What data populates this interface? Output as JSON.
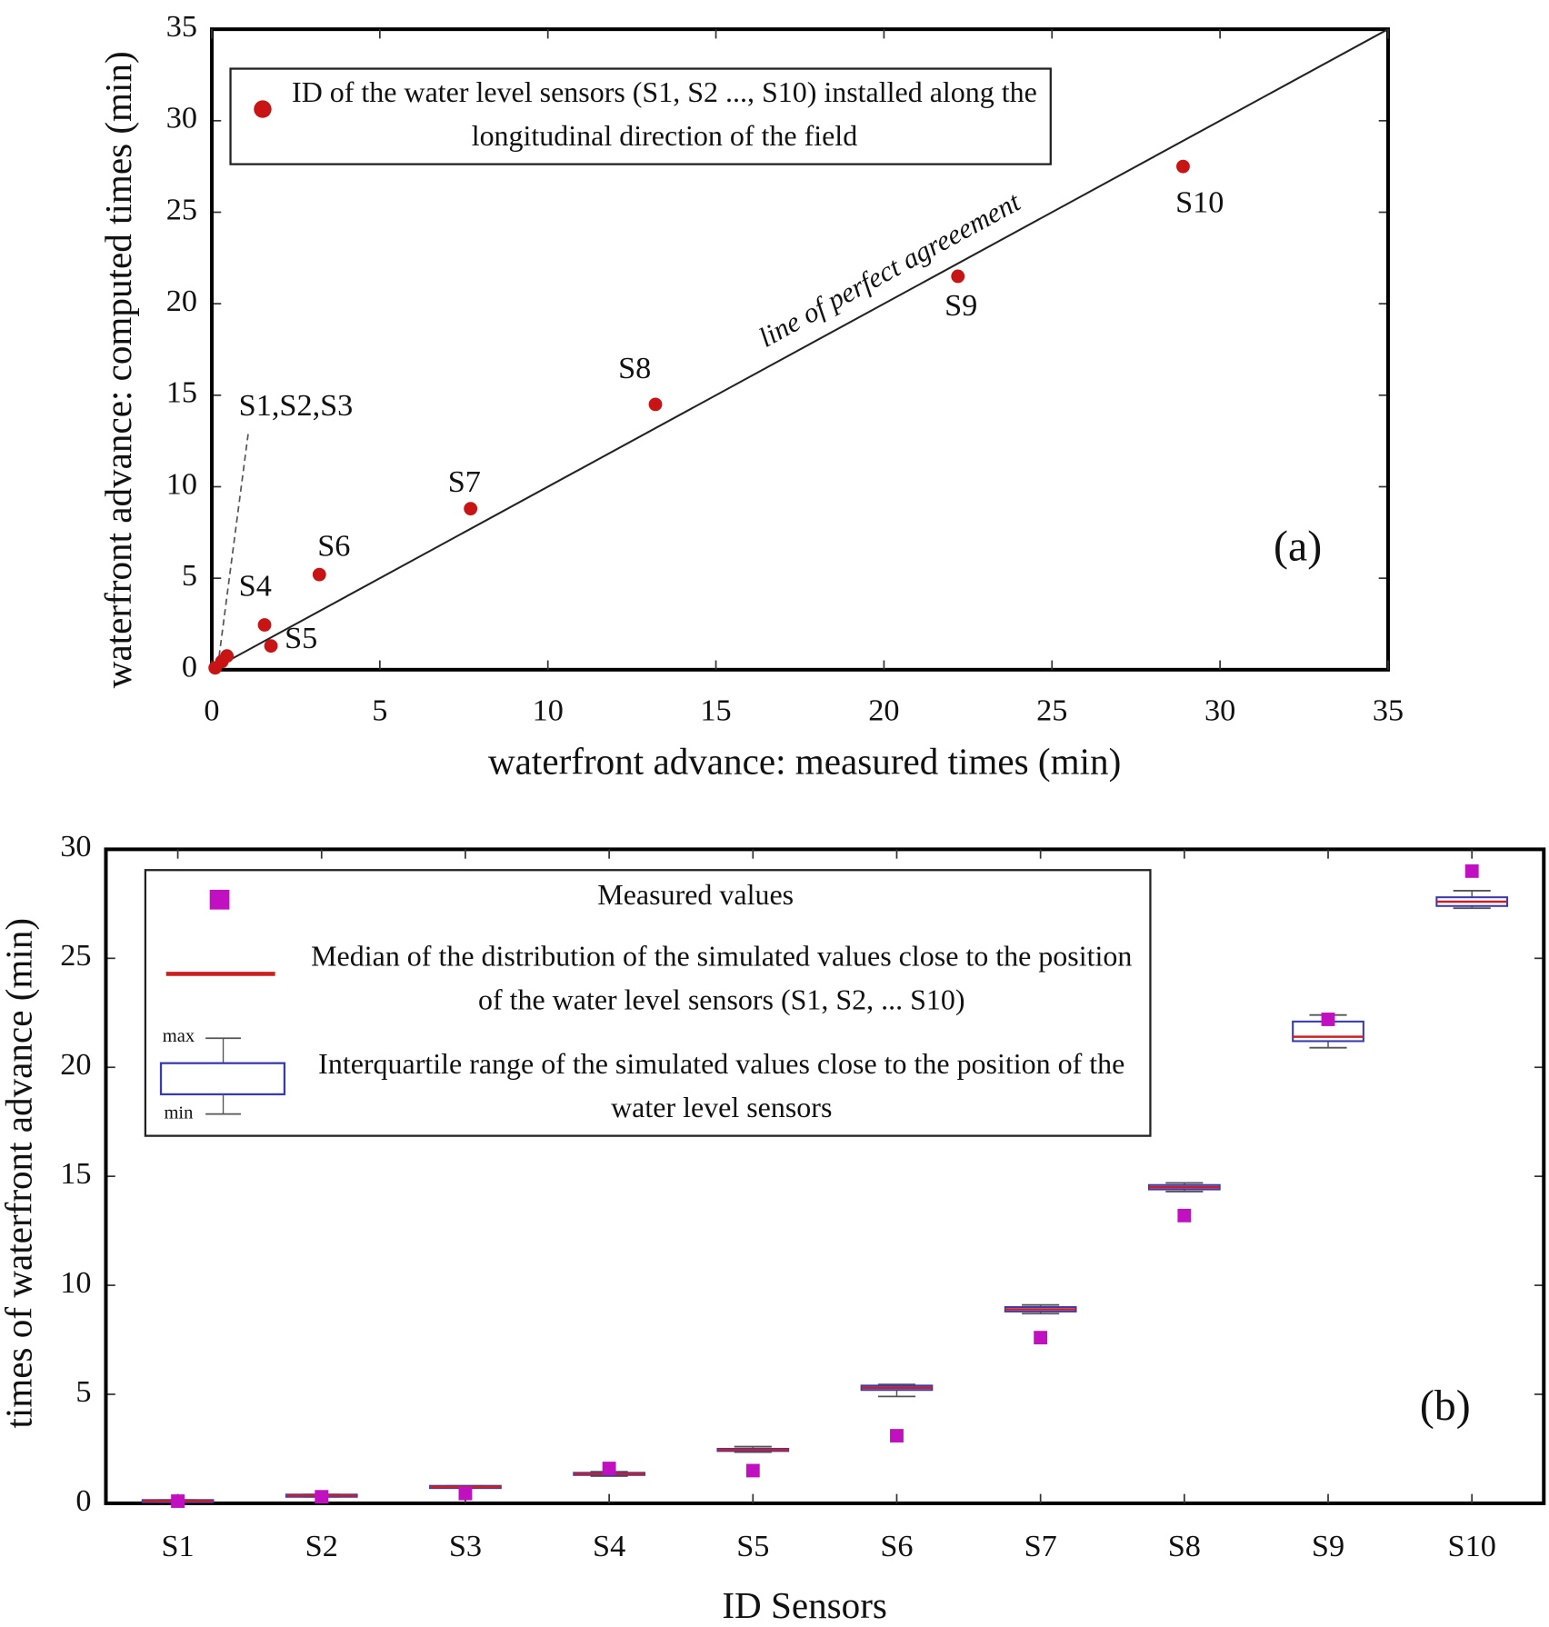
{
  "chart_data": [
    {
      "type": "scatter",
      "xlabel": "waterfront advance: measured times (min)",
      "ylabel": "waterfront advance: computed times (min)",
      "xlim": [
        0,
        35
      ],
      "xticks": [
        0,
        5,
        10,
        15,
        20,
        25,
        30,
        35
      ],
      "ylim": [
        0,
        35
      ],
      "yticks": [
        0,
        5,
        10,
        15,
        20,
        25,
        30,
        35
      ],
      "series": [
        {
          "name": "ID of the water level sensors (S1, S2 ..., S10) installed along the longitudinal direction of the field",
          "color": "#c81414",
          "x": [
            0.1,
            0.3,
            0.45,
            1.57,
            1.76,
            3.2,
            7.7,
            13.2,
            22.2,
            28.9
          ],
          "values": [
            0.1,
            0.45,
            0.75,
            2.45,
            1.3,
            5.2,
            8.8,
            14.5,
            21.5,
            27.5
          ],
          "labels": [
            null,
            null,
            null,
            "S4",
            "S5",
            "S6",
            "S7",
            "S8",
            "S9",
            "S10"
          ]
        }
      ],
      "annotations": [
        "S1,S2,S3",
        "line of perfect agreeement",
        "(a)"
      ]
    },
    {
      "type": "box",
      "xlabel": "ID Sensors",
      "ylabel": "times of waterfront advance (min)",
      "categories": [
        "S1",
        "S2",
        "S3",
        "S4",
        "S5",
        "S6",
        "S7",
        "S8",
        "S9",
        "S10"
      ],
      "ylim": [
        0,
        30
      ],
      "yticks": [
        0,
        5,
        10,
        15,
        20,
        25,
        30
      ],
      "series": [
        {
          "name": "Measured values",
          "color": "#c010c0",
          "values": [
            0.1,
            0.3,
            0.45,
            1.6,
            1.5,
            3.1,
            7.6,
            13.2,
            22.2,
            29.0
          ]
        }
      ],
      "boxes": {
        "name": "Interquartile range of the simulated values close to the position of the water level sensors",
        "median_name": "Median of the distribution of the simulated values close to the position of the water level sensors (S1, S2, ... S10)",
        "color": "#3a3ab0",
        "median_color": "#cc2020",
        "min_label": "min",
        "max_label": "max",
        "median": [
          0.1,
          0.35,
          0.75,
          1.35,
          2.45,
          5.3,
          8.9,
          14.5,
          21.4,
          27.6
        ],
        "q1": [
          0.05,
          0.3,
          0.7,
          1.3,
          2.4,
          5.2,
          8.8,
          14.4,
          21.2,
          27.4
        ],
        "q3": [
          0.15,
          0.4,
          0.8,
          1.4,
          2.5,
          5.4,
          9.0,
          14.6,
          22.1,
          27.8
        ],
        "min": [
          0.05,
          0.3,
          0.7,
          1.25,
          2.35,
          4.9,
          8.7,
          14.3,
          20.9,
          27.3
        ],
        "max": [
          0.15,
          0.4,
          0.8,
          1.45,
          2.6,
          5.45,
          9.1,
          14.7,
          22.4,
          28.1
        ]
      },
      "annotations": [
        "(b)"
      ]
    }
  ]
}
